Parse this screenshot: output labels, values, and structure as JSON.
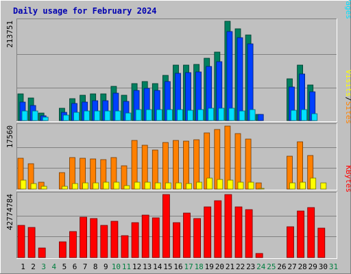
{
  "chart_data": {
    "type": "bar",
    "title": "Daily usage for February 2024",
    "days": [
      "1",
      "2",
      "3",
      "4",
      "5",
      "6",
      "7",
      "8",
      "9",
      "10",
      "11",
      "12",
      "13",
      "14",
      "15",
      "16",
      "17",
      "18",
      "19",
      "20",
      "21",
      "22",
      "23",
      "24",
      "25",
      "26",
      "27",
      "28",
      "29",
      "30",
      "31"
    ],
    "weekend_days": [
      3,
      4,
      10,
      11,
      17,
      18,
      24,
      25,
      31
    ],
    "colors": {
      "hits": "#007f5f",
      "files": "#0040ff",
      "pages": "#00e0ff",
      "visits": "#ff8000",
      "sites": "#ffff00",
      "kbytes": "#ff0000",
      "weekday_label": "#000000",
      "weekend_label": "#007f3f",
      "title": "#0000b0"
    },
    "panels": [
      {
        "id": "hits",
        "ymax_label": "213751",
        "ymax": 213751,
        "legend": [
          "Pages",
          "/",
          "Files",
          "/",
          "Hits"
        ],
        "legend_colors": [
          "#00e0ff",
          "#000000",
          "#0040ff",
          "#000000",
          "#007f5f"
        ],
        "series": [
          {
            "name": "Hits",
            "color": "#007f5f",
            "values": [
              58000,
              49000,
              16000,
              0,
              26000,
              47000,
              54000,
              57000,
              57000,
              73000,
              54000,
              79000,
              84000,
              79000,
              98000,
              119000,
              119000,
              121000,
              134000,
              147000,
              213751,
              198000,
              184000,
              13000,
              0,
              0,
              90000,
              120000,
              77000,
              0,
              0
            ]
          },
          {
            "name": "Files",
            "color": "#0040ff",
            "values": [
              40000,
              32000,
              10000,
              0,
              17000,
              37000,
              40000,
              43000,
              43000,
              59000,
              42000,
              65000,
              70000,
              65000,
              84000,
              102000,
              103000,
              105000,
              117000,
              127000,
              192000,
              178000,
              165000,
              13000,
              0,
              0,
              72000,
              100000,
              62000,
              0,
              0
            ]
          },
          {
            "name": "Pages",
            "color": "#00e0ff",
            "values": [
              20000,
              20000,
              7000,
              0,
              12000,
              17000,
              20000,
              21000,
              21000,
              21000,
              16000,
              23000,
              23000,
              23000,
              23000,
              23000,
              22000,
              23000,
              27000,
              27000,
              27000,
              21000,
              24000,
              0,
              0,
              0,
              22000,
              24000,
              15000,
              0,
              0
            ]
          }
        ]
      },
      {
        "id": "visits",
        "ymax_label": "17560",
        "ymax": 17560,
        "legend": [
          "Sites",
          "/",
          "Visits"
        ],
        "legend_colors": [
          "#ff8000",
          "#000000",
          "#ffff00"
        ],
        "series": [
          {
            "name": "Visits",
            "color": "#ff8000",
            "values": [
              8500,
              7000,
              2000,
              0,
              4600,
              8800,
              8600,
              8400,
              8200,
              8700,
              6500,
              13600,
              12300,
              10900,
              12900,
              13500,
              13400,
              13800,
              15700,
              16700,
              17560,
              15500,
              13900,
              1700,
              0,
              0,
              9100,
              13200,
              9300,
              0,
              0
            ]
          },
          {
            "name": "Sites",
            "color": "#ffff00",
            "values": [
              2400,
              1600,
              700,
              0,
              800,
              1600,
              1700,
              1800,
              2000,
              1900,
              1000,
              2000,
              2000,
              1800,
              1700,
              1700,
              1600,
              1900,
              3000,
              2700,
              2500,
              2000,
              1900,
              200,
              0,
              0,
              1700,
              2000,
              3000,
              1700,
              0
            ]
          }
        ]
      },
      {
        "id": "kbytes",
        "ymax_label": "42774784",
        "ymax": 42774784,
        "legend": [
          "KBytes"
        ],
        "legend_colors": [
          "#ff0000"
        ],
        "series": [
          {
            "name": "KBytes",
            "color": "#ff0000",
            "values": [
              21700000,
              20400000,
              6600000,
              0,
              10700000,
              17700000,
              27300000,
              26400000,
              21900000,
              24600000,
              15000000,
              23500000,
              28600000,
              26800000,
              42600000,
              23700000,
              30400000,
              26400000,
              34300000,
              38400000,
              42774784,
              34300000,
              32600000,
              2700000,
              0,
              0,
              21100000,
              31500000,
              33800000,
              19800000,
              0
            ]
          }
        ]
      }
    ]
  }
}
